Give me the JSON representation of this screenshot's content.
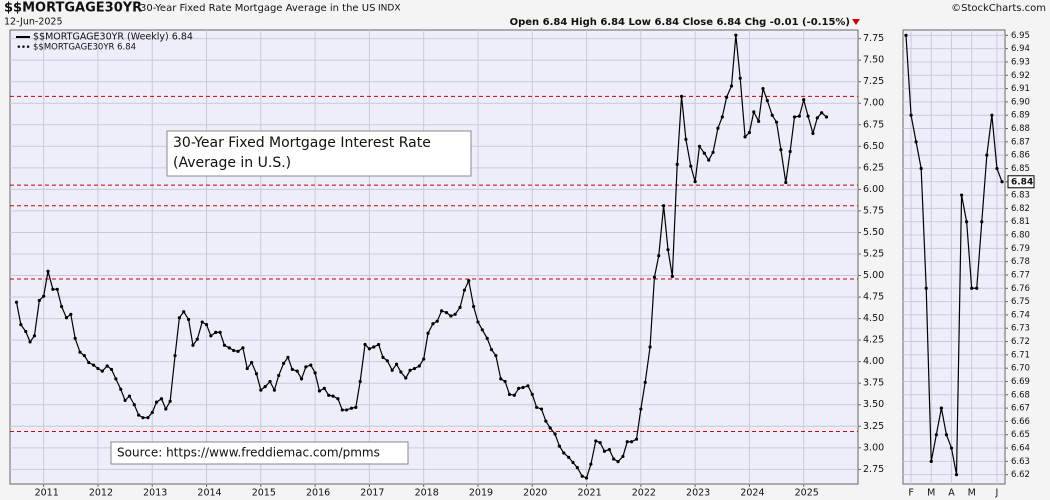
{
  "header": {
    "symbol": "$$MORTGAGE30YR",
    "description": "30-Year Fixed Rate Mortgage Average in the US",
    "exchange": "INDX",
    "date": "12-Jun-2025",
    "quote": "Open 6.84  High 6.84  Low 6.84  Close 6.84  Chg -0.01 (-0.15%)",
    "copyright": "©StockCharts.com",
    "legend_line": "$$MORTGAGE30YR (Weekly) 6.84",
    "legend_dots": "$$MORTGAGE30YR 6.84",
    "last_value": "6.84"
  },
  "chart_data": [
    {
      "type": "line",
      "title": "30-Year Fixed Mortgage Interest Rate",
      "subtitle": "(Average in U.S.)",
      "source": "Source: https://www.freddiemac.com/pmms",
      "color": "#000000",
      "grid": true,
      "x": [
        2010.5,
        2010.58,
        2010.67,
        2010.75,
        2010.83,
        2010.92,
        2011.0,
        2011.08,
        2011.17,
        2011.25,
        2011.33,
        2011.42,
        2011.5,
        2011.58,
        2011.67,
        2011.75,
        2011.83,
        2011.92,
        2012.0,
        2012.08,
        2012.17,
        2012.25,
        2012.33,
        2012.42,
        2012.5,
        2012.58,
        2012.67,
        2012.75,
        2012.83,
        2012.92,
        2013.0,
        2013.08,
        2013.17,
        2013.25,
        2013.33,
        2013.42,
        2013.5,
        2013.58,
        2013.67,
        2013.75,
        2013.83,
        2013.92,
        2014.0,
        2014.08,
        2014.17,
        2014.25,
        2014.33,
        2014.42,
        2014.5,
        2014.58,
        2014.67,
        2014.75,
        2014.83,
        2014.92,
        2015.0,
        2015.08,
        2015.17,
        2015.25,
        2015.33,
        2015.42,
        2015.5,
        2015.58,
        2015.67,
        2015.75,
        2015.83,
        2015.92,
        2016.0,
        2016.08,
        2016.17,
        2016.25,
        2016.33,
        2016.42,
        2016.5,
        2016.58,
        2016.67,
        2016.75,
        2016.83,
        2016.92,
        2017.0,
        2017.08,
        2017.17,
        2017.25,
        2017.33,
        2017.42,
        2017.5,
        2017.58,
        2017.67,
        2017.75,
        2017.83,
        2017.92,
        2018.0,
        2018.08,
        2018.17,
        2018.25,
        2018.33,
        2018.42,
        2018.5,
        2018.58,
        2018.67,
        2018.75,
        2018.83,
        2018.92,
        2019.0,
        2019.08,
        2019.17,
        2019.25,
        2019.33,
        2019.42,
        2019.5,
        2019.58,
        2019.67,
        2019.75,
        2019.83,
        2019.92,
        2020.0,
        2020.08,
        2020.17,
        2020.25,
        2020.33,
        2020.42,
        2020.5,
        2020.58,
        2020.67,
        2020.75,
        2020.83,
        2020.92,
        2021.0,
        2021.08,
        2021.17,
        2021.25,
        2021.33,
        2021.42,
        2021.5,
        2021.58,
        2021.67,
        2021.75,
        2021.83,
        2021.92,
        2022.0,
        2022.08,
        2022.17,
        2022.25,
        2022.33,
        2022.42,
        2022.5,
        2022.58,
        2022.67,
        2022.75,
        2022.83,
        2022.92,
        2023.0,
        2023.08,
        2023.17,
        2023.25,
        2023.33,
        2023.42,
        2023.5,
        2023.58,
        2023.67,
        2023.75,
        2023.83,
        2023.92,
        2024.0,
        2024.08,
        2024.17,
        2024.25,
        2024.33,
        2024.42,
        2024.5,
        2024.58,
        2024.67,
        2024.75,
        2024.83,
        2024.92,
        2025.0,
        2025.08,
        2025.17,
        2025.25,
        2025.33,
        2025.42
      ],
      "values": [
        4.69,
        4.43,
        4.35,
        4.23,
        4.3,
        4.71,
        4.76,
        5.05,
        4.84,
        4.84,
        4.64,
        4.51,
        4.55,
        4.27,
        4.11,
        4.07,
        3.99,
        3.96,
        3.92,
        3.89,
        3.95,
        3.91,
        3.8,
        3.68,
        3.55,
        3.6,
        3.5,
        3.38,
        3.35,
        3.35,
        3.41,
        3.53,
        3.57,
        3.45,
        3.54,
        4.07,
        4.51,
        4.58,
        4.49,
        4.19,
        4.26,
        4.46,
        4.43,
        4.3,
        4.34,
        4.34,
        4.19,
        4.16,
        4.13,
        4.12,
        4.16,
        3.92,
        3.99,
        3.86,
        3.67,
        3.71,
        3.77,
        3.67,
        3.84,
        3.98,
        4.05,
        3.91,
        3.89,
        3.8,
        3.94,
        3.96,
        3.87,
        3.66,
        3.69,
        3.61,
        3.6,
        3.57,
        3.44,
        3.44,
        3.46,
        3.47,
        3.77,
        4.2,
        4.15,
        4.17,
        4.2,
        4.05,
        4.01,
        3.9,
        3.97,
        3.88,
        3.81,
        3.9,
        3.92,
        3.95,
        4.03,
        4.33,
        4.44,
        4.47,
        4.59,
        4.57,
        4.53,
        4.55,
        4.63,
        4.83,
        4.94,
        4.64,
        4.46,
        4.37,
        4.27,
        4.14,
        4.07,
        3.8,
        3.77,
        3.62,
        3.61,
        3.69,
        3.7,
        3.72,
        3.62,
        3.47,
        3.45,
        3.31,
        3.23,
        3.16,
        3.02,
        2.94,
        2.89,
        2.83,
        2.77,
        2.67,
        2.65,
        2.81,
        3.08,
        3.06,
        2.96,
        2.98,
        2.87,
        2.84,
        2.9,
        3.07,
        3.07,
        3.1,
        3.45,
        3.76,
        4.17,
        4.98,
        5.23,
        5.81,
        5.3,
        4.99,
        6.29,
        7.08,
        6.58,
        6.27,
        6.09,
        6.5,
        6.42,
        6.34,
        6.43,
        6.71,
        6.84,
        7.07,
        7.2,
        7.79,
        7.29,
        6.61,
        6.66,
        6.9,
        6.79,
        7.17,
        7.03,
        6.86,
        6.78,
        6.46,
        6.08,
        6.44,
        6.84,
        6.85,
        7.04,
        6.85,
        6.65,
        6.83,
        6.89,
        6.84
      ],
      "xlim": [
        2010.38,
        2026.0
      ],
      "xticks": [
        2011,
        2012,
        2013,
        2014,
        2015,
        2016,
        2017,
        2018,
        2019,
        2020,
        2021,
        2022,
        2023,
        2024,
        2025
      ],
      "ylim": [
        2.58,
        7.85
      ],
      "yticks": [
        2.75,
        {
          "value": 3,
          "label": "3.00"
        },
        3.25,
        {
          "value": 3.5,
          "label": "3.50"
        },
        3.75,
        {
          "value": 4,
          "label": "4.00"
        },
        4.25,
        {
          "value": 4.5,
          "label": "4.50"
        },
        4.75,
        {
          "value": 5,
          "label": "5.00"
        },
        5.25,
        {
          "value": 5.5,
          "label": "5.50"
        },
        5.75,
        {
          "value": 6,
          "label": "6.00"
        },
        6.25,
        {
          "value": 6.5,
          "label": "6.50"
        },
        6.75,
        {
          "value": 7,
          "label": "7.00"
        },
        7.25,
        {
          "value": 7.5,
          "label": "7.50"
        },
        7.75
      ],
      "hlines": {
        "values": [
          7.08,
          6.05,
          5.81,
          4.96,
          3.19
        ],
        "color": "#cc0000"
      }
    },
    {
      "type": "line",
      "color": "#000000",
      "grid": true,
      "categories": [
        null,
        "F",
        null,
        null,
        null,
        "M",
        null,
        null,
        null,
        "A",
        null,
        null,
        null,
        "M",
        null,
        null,
        null,
        null,
        "J",
        null
      ],
      "values": [
        6.95,
        6.89,
        6.87,
        6.85,
        6.76,
        6.63,
        6.65,
        6.67,
        6.65,
        6.64,
        6.62,
        6.83,
        6.81,
        6.76,
        6.76,
        6.81,
        6.86,
        6.89,
        6.85,
        6.84
      ],
      "ylim": [
        6.613,
        6.954
      ],
      "yticks": [
        6.62,
        6.63,
        6.64,
        6.65,
        6.66,
        6.67,
        6.68,
        6.69,
        {
          "value": 6.7,
          "label": "6.70"
        },
        6.71,
        6.72,
        6.73,
        6.74,
        6.75,
        6.76,
        6.77,
        6.78,
        6.79,
        {
          "value": 6.8,
          "label": "6.80"
        },
        6.81,
        6.82,
        6.83,
        6.84,
        6.85,
        6.86,
        6.87,
        6.88,
        6.89,
        {
          "value": 6.9,
          "label": "6.90"
        },
        6.91,
        6.92,
        6.93,
        6.94,
        6.95
      ]
    }
  ]
}
